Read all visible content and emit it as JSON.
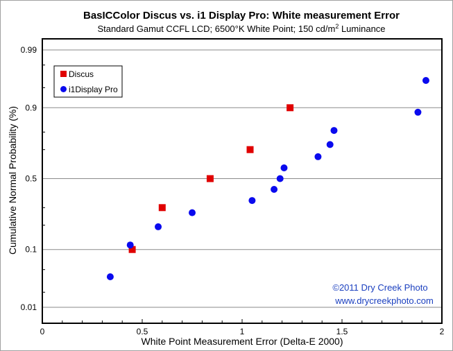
{
  "chart_data": {
    "type": "scatter",
    "title": "BasICColor Discus vs. i1 Display Pro: White measurement Error",
    "subtitle_main": "Standard Gamut CCFL LCD; 6500°K White Point; 150 cd/m",
    "subtitle_sup": "2",
    "subtitle_end": " Luminance",
    "xlabel": "White Point Measurement Error (Delta-E 2000)",
    "ylabel": "Cumulative Normal Probability (%)",
    "xlim": [
      0,
      2
    ],
    "x_ticks": [
      "0",
      "0.5",
      "1",
      "1.5",
      "2"
    ],
    "y_scale": "normal-probability",
    "y_ticks": [
      "0.01",
      "0.1",
      "0.5",
      "0.9",
      "0.99"
    ],
    "y_grid": true,
    "legend_position": "top-left",
    "series": [
      {
        "name": "Discus",
        "marker": "square",
        "color": "#e00000",
        "x": [
          0.45,
          0.6,
          0.84,
          1.04,
          1.24
        ],
        "y": [
          0.1,
          0.3,
          0.5,
          0.7,
          0.9
        ]
      },
      {
        "name": "i1Display Pro",
        "marker": "circle",
        "color": "#0a0aee",
        "x": [
          0.34,
          0.44,
          0.58,
          0.75,
          1.05,
          1.16,
          1.19,
          1.21,
          1.38,
          1.44,
          1.46,
          1.88,
          1.92
        ],
        "y": [
          0.038,
          0.115,
          0.192,
          0.269,
          0.346,
          0.423,
          0.5,
          0.577,
          0.654,
          0.731,
          0.808,
          0.885,
          0.962
        ]
      }
    ],
    "credit_line1": "©2011 Dry Creek Photo",
    "credit_line2": "www.drycreekphoto.com"
  }
}
